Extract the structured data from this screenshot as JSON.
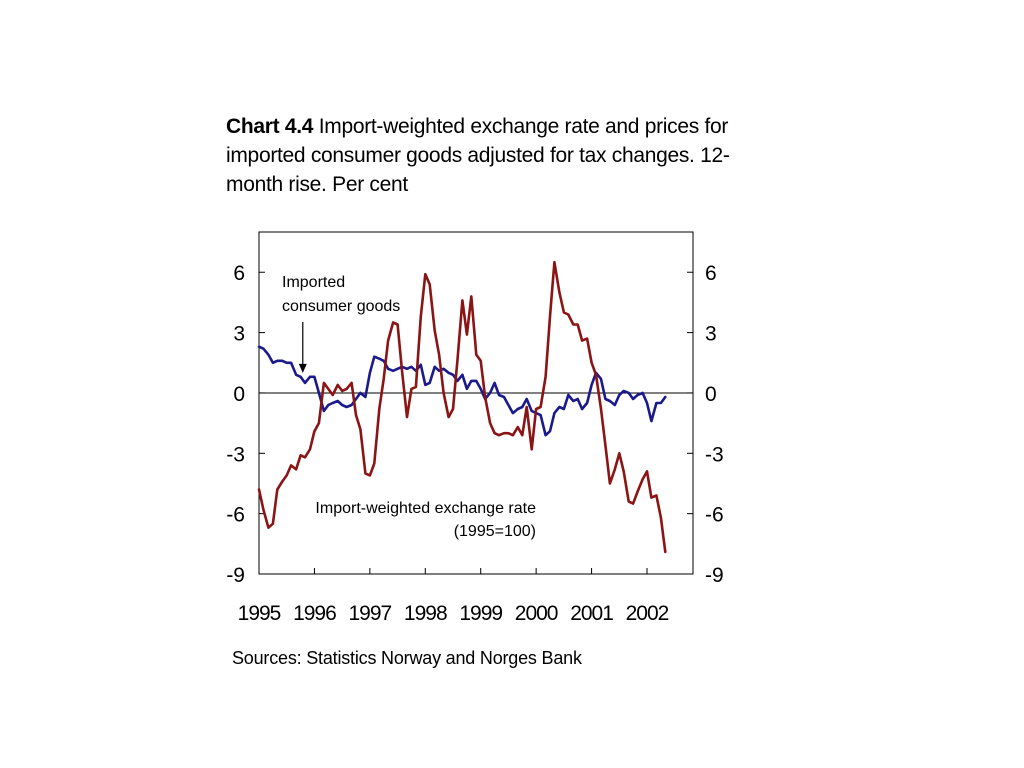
{
  "title": {
    "prefix": "Chart 4.4",
    "text": "Import-weighted exchange rate and prices for imported consumer goods adjusted for tax changes. 12-month rise. Per cent"
  },
  "source": "Sources: Statistics Norway and Norges Bank",
  "chart_data": {
    "type": "line",
    "y_ticks": [
      6,
      3,
      0,
      -3,
      -6,
      -9
    ],
    "y_ticks_right": [
      6,
      3,
      0,
      -3,
      -6,
      -9
    ],
    "ylim": [
      -9,
      8
    ],
    "xlim": [
      1995,
      2002.83
    ],
    "x_ticks": [
      1995,
      1996,
      1997,
      1998,
      1999,
      2000,
      2001,
      2002
    ],
    "zero_line": true,
    "grid": false,
    "annotations": [
      {
        "text_lines": [
          "Imported",
          "consumer goods"
        ],
        "arrow_to": {
          "x": 1995.79,
          "y": 1.0
        }
      },
      {
        "text_lines": [
          "Import-weighted exchange rate",
          "(1995=100)"
        ]
      }
    ],
    "series": [
      {
        "label_ref": "annotations.0",
        "color": "#1a1a8c",
        "points": [
          [
            1995.0,
            2.3
          ],
          [
            1995.08,
            2.2
          ],
          [
            1995.17,
            1.9
          ],
          [
            1995.25,
            1.5
          ],
          [
            1995.33,
            1.6
          ],
          [
            1995.42,
            1.6
          ],
          [
            1995.5,
            1.5
          ],
          [
            1995.58,
            1.5
          ],
          [
            1995.67,
            0.9
          ],
          [
            1995.75,
            0.8
          ],
          [
            1995.83,
            0.5
          ],
          [
            1995.92,
            0.8
          ],
          [
            1996.0,
            0.8
          ],
          [
            1996.08,
            0.0
          ],
          [
            1996.17,
            -0.9
          ],
          [
            1996.25,
            -0.6
          ],
          [
            1996.33,
            -0.5
          ],
          [
            1996.42,
            -0.4
          ],
          [
            1996.5,
            -0.6
          ],
          [
            1996.58,
            -0.7
          ],
          [
            1996.67,
            -0.6
          ],
          [
            1996.75,
            -0.3
          ],
          [
            1996.83,
            0.0
          ],
          [
            1996.92,
            -0.2
          ],
          [
            1997.0,
            1.0
          ],
          [
            1997.08,
            1.8
          ],
          [
            1997.17,
            1.7
          ],
          [
            1997.25,
            1.6
          ],
          [
            1997.33,
            1.2
          ],
          [
            1997.42,
            1.1
          ],
          [
            1997.5,
            1.2
          ],
          [
            1997.58,
            1.3
          ],
          [
            1997.67,
            1.2
          ],
          [
            1997.75,
            1.3
          ],
          [
            1997.83,
            1.1
          ],
          [
            1997.92,
            1.4
          ],
          [
            1998.0,
            0.4
          ],
          [
            1998.08,
            0.5
          ],
          [
            1998.17,
            1.3
          ],
          [
            1998.25,
            1.1
          ],
          [
            1998.33,
            1.2
          ],
          [
            1998.42,
            1.0
          ],
          [
            1998.5,
            0.9
          ],
          [
            1998.58,
            0.6
          ],
          [
            1998.67,
            0.9
          ],
          [
            1998.75,
            0.2
          ],
          [
            1998.83,
            0.6
          ],
          [
            1998.92,
            0.6
          ],
          [
            1999.0,
            0.2
          ],
          [
            1999.08,
            -0.3
          ],
          [
            1999.17,
            0.0
          ],
          [
            1999.25,
            0.5
          ],
          [
            1999.33,
            -0.1
          ],
          [
            1999.42,
            -0.2
          ],
          [
            1999.5,
            -0.6
          ],
          [
            1999.58,
            -1.0
          ],
          [
            1999.67,
            -0.8
          ],
          [
            1999.75,
            -0.7
          ],
          [
            1999.83,
            -0.3
          ],
          [
            1999.92,
            -0.9
          ],
          [
            2000.0,
            -1.0
          ],
          [
            2000.08,
            -1.1
          ],
          [
            2000.17,
            -2.1
          ],
          [
            2000.25,
            -1.9
          ],
          [
            2000.33,
            -1.0
          ],
          [
            2000.42,
            -0.7
          ],
          [
            2000.5,
            -0.8
          ],
          [
            2000.58,
            -0.1
          ],
          [
            2000.67,
            -0.4
          ],
          [
            2000.75,
            -0.3
          ],
          [
            2000.83,
            -0.8
          ],
          [
            2000.92,
            -0.5
          ],
          [
            2001.0,
            0.4
          ],
          [
            2001.08,
            1.0
          ],
          [
            2001.17,
            0.7
          ],
          [
            2001.25,
            -0.3
          ],
          [
            2001.33,
            -0.4
          ],
          [
            2001.42,
            -0.6
          ],
          [
            2001.5,
            -0.1
          ],
          [
            2001.58,
            0.1
          ],
          [
            2001.67,
            0.0
          ],
          [
            2001.75,
            -0.3
          ],
          [
            2001.83,
            -0.1
          ],
          [
            2001.92,
            0.0
          ],
          [
            2002.0,
            -0.5
          ],
          [
            2002.08,
            -1.4
          ],
          [
            2002.17,
            -0.5
          ],
          [
            2002.25,
            -0.5
          ],
          [
            2002.33,
            -0.2
          ]
        ]
      },
      {
        "label_ref": "annotations.1",
        "color": "#8b1414",
        "points": [
          [
            1995.0,
            -4.8
          ],
          [
            1995.08,
            -5.8
          ],
          [
            1995.17,
            -6.7
          ],
          [
            1995.25,
            -6.5
          ],
          [
            1995.33,
            -4.8
          ],
          [
            1995.42,
            -4.4
          ],
          [
            1995.5,
            -4.1
          ],
          [
            1995.58,
            -3.6
          ],
          [
            1995.67,
            -3.8
          ],
          [
            1995.75,
            -3.1
          ],
          [
            1995.83,
            -3.2
          ],
          [
            1995.92,
            -2.8
          ],
          [
            1996.0,
            -1.9
          ],
          [
            1996.08,
            -1.5
          ],
          [
            1996.17,
            0.5
          ],
          [
            1996.25,
            0.2
          ],
          [
            1996.33,
            -0.1
          ],
          [
            1996.42,
            0.4
          ],
          [
            1996.5,
            0.1
          ],
          [
            1996.58,
            0.2
          ],
          [
            1996.67,
            0.5
          ],
          [
            1996.75,
            -1.1
          ],
          [
            1996.83,
            -1.8
          ],
          [
            1996.92,
            -4.0
          ],
          [
            1997.0,
            -4.1
          ],
          [
            1997.08,
            -3.5
          ],
          [
            1997.17,
            -0.8
          ],
          [
            1997.25,
            0.7
          ],
          [
            1997.33,
            2.6
          ],
          [
            1997.42,
            3.5
          ],
          [
            1997.5,
            3.4
          ],
          [
            1997.58,
            1.1
          ],
          [
            1997.67,
            -1.2
          ],
          [
            1997.75,
            0.2
          ],
          [
            1997.83,
            0.3
          ],
          [
            1997.92,
            3.8
          ],
          [
            1998.0,
            5.9
          ],
          [
            1998.08,
            5.4
          ],
          [
            1998.17,
            3.1
          ],
          [
            1998.25,
            1.9
          ],
          [
            1998.33,
            0.0
          ],
          [
            1998.42,
            -1.2
          ],
          [
            1998.5,
            -0.8
          ],
          [
            1998.58,
            1.6
          ],
          [
            1998.67,
            4.6
          ],
          [
            1998.75,
            2.9
          ],
          [
            1998.83,
            4.8
          ],
          [
            1998.92,
            1.9
          ],
          [
            1999.0,
            1.6
          ],
          [
            1999.08,
            -0.2
          ],
          [
            1999.17,
            -1.5
          ],
          [
            1999.25,
            -2.0
          ],
          [
            1999.33,
            -2.1
          ],
          [
            1999.42,
            -2.0
          ],
          [
            1999.5,
            -2.0
          ],
          [
            1999.58,
            -2.1
          ],
          [
            1999.67,
            -1.7
          ],
          [
            1999.75,
            -2.1
          ],
          [
            1999.83,
            -0.7
          ],
          [
            1999.92,
            -2.8
          ],
          [
            2000.0,
            -0.8
          ],
          [
            2000.08,
            -0.7
          ],
          [
            2000.17,
            0.8
          ],
          [
            2000.25,
            3.8
          ],
          [
            2000.33,
            6.5
          ],
          [
            2000.42,
            5.0
          ],
          [
            2000.5,
            4.0
          ],
          [
            2000.58,
            3.9
          ],
          [
            2000.67,
            3.4
          ],
          [
            2000.75,
            3.4
          ],
          [
            2000.83,
            2.6
          ],
          [
            2000.92,
            2.7
          ],
          [
            2001.0,
            1.5
          ],
          [
            2001.08,
            0.9
          ],
          [
            2001.17,
            -0.8
          ],
          [
            2001.25,
            -2.6
          ],
          [
            2001.33,
            -4.5
          ],
          [
            2001.42,
            -3.8
          ],
          [
            2001.5,
            -3.0
          ],
          [
            2001.58,
            -3.9
          ],
          [
            2001.67,
            -5.4
          ],
          [
            2001.75,
            -5.5
          ],
          [
            2001.83,
            -4.9
          ],
          [
            2001.92,
            -4.3
          ],
          [
            2002.0,
            -3.9
          ],
          [
            2002.08,
            -5.2
          ],
          [
            2002.17,
            -5.1
          ],
          [
            2002.25,
            -6.2
          ],
          [
            2002.33,
            -7.9
          ]
        ]
      }
    ]
  }
}
